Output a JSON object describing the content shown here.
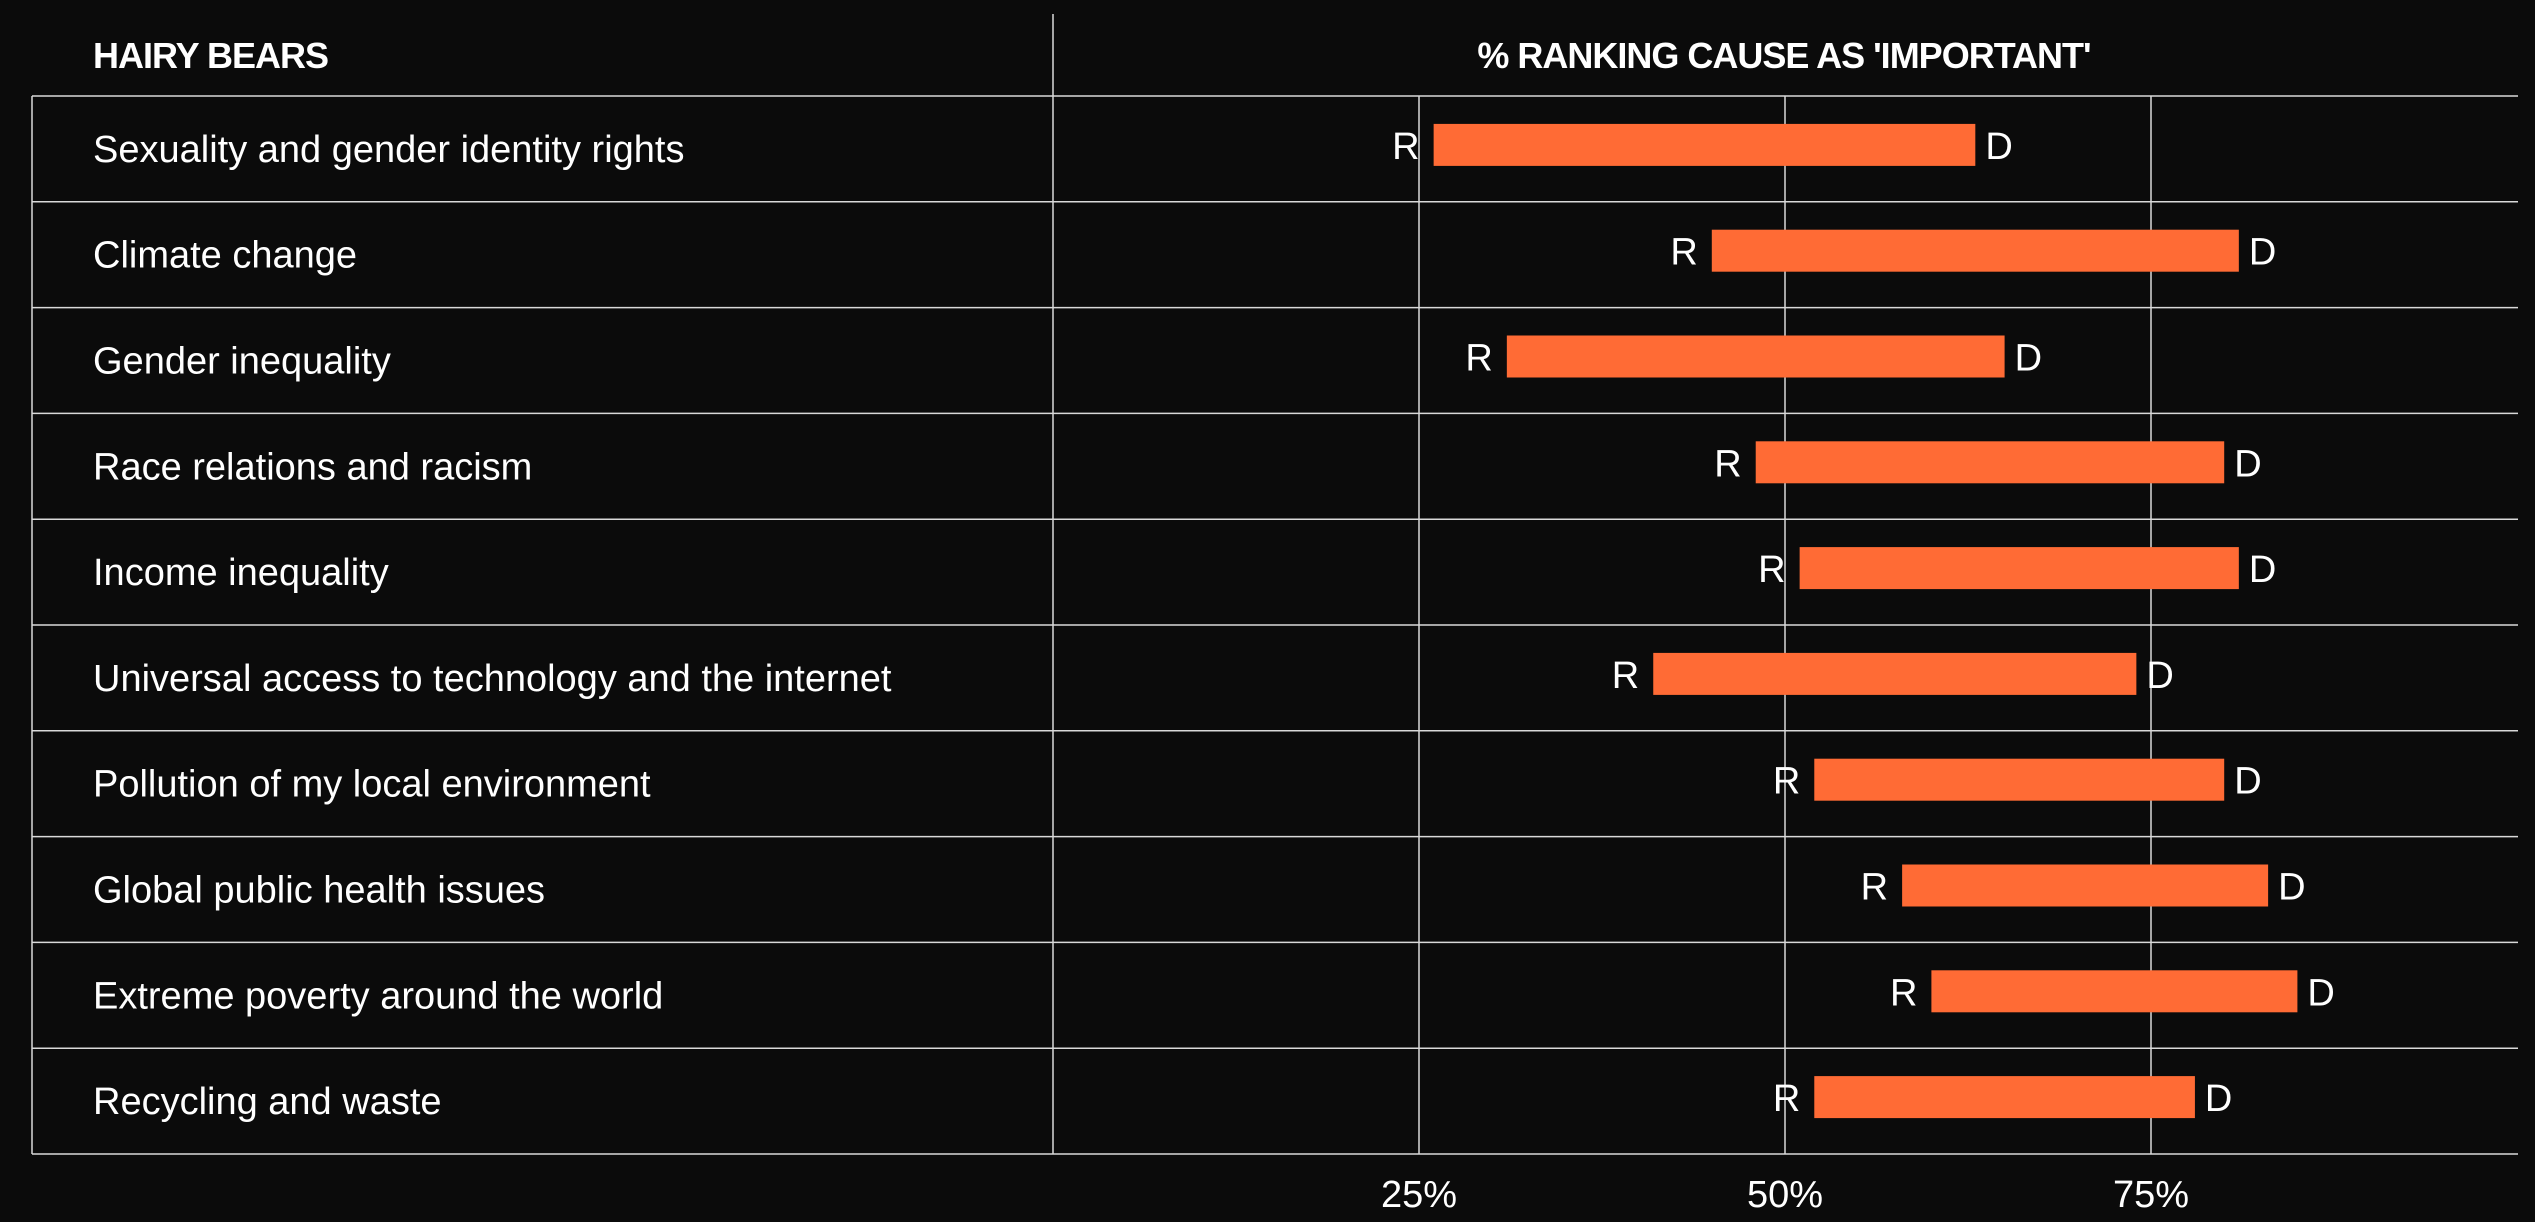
{
  "header": {
    "left_title": "HAIRY BEARS",
    "chart_title": "% RANKING CAUSE AS 'IMPORTANT'"
  },
  "chart_data": {
    "type": "dumbbell",
    "title": "% RANKING CAUSE AS 'IMPORTANT'",
    "categories": [
      "Sexuality and gender identity rights",
      "Climate change",
      "Gender inequality",
      "Race relations and racism",
      "Income inequality",
      "Universal access to technology and the internet",
      "Pollution of my local environment",
      "Global public health issues",
      "Extreme poverty around the world",
      "Recycling and waste"
    ],
    "series": [
      {
        "name": "R",
        "values": [
          26,
          45,
          31,
          48,
          51,
          41,
          52,
          58,
          60,
          52
        ]
      },
      {
        "name": "D",
        "values": [
          63,
          81,
          65,
          80,
          81,
          74,
          80,
          83,
          85,
          78
        ]
      }
    ],
    "xlim": [
      0,
      100
    ],
    "xticks": [
      25,
      50,
      75
    ],
    "xtick_labels": [
      "25%",
      "50%",
      "75%"
    ],
    "grid": true,
    "colors": {
      "background": "#0b0b0b",
      "bar": "#ff6b35",
      "grid": "#d9d9d9",
      "text": "#ffffff"
    }
  }
}
